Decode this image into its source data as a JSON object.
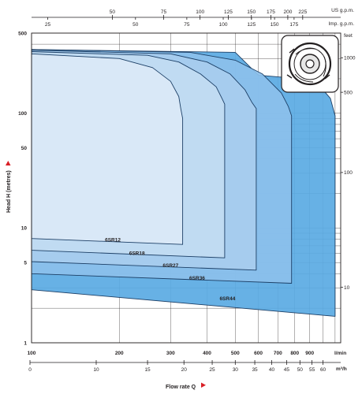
{
  "chart_data": {
    "type": "area",
    "title": "",
    "xlabel": "Flow rate Q",
    "ylabel": "Head H (metres)",
    "x_scale": "log",
    "y_scale": "log",
    "xlim": [
      100,
      1150
    ],
    "ylim": [
      1,
      500
    ],
    "grid": true,
    "x_unit": "l/min",
    "y_unit_right": "feet",
    "top_unit_us": "US g.p.m.",
    "top_unit_imp": "Imp. g.p.m.",
    "bottom_unit": "m³/h",
    "x_ticks": [
      "100",
      "200",
      "300",
      "400",
      "500",
      "600",
      "700",
      "800",
      "900"
    ],
    "y_ticks": [
      "1",
      "5",
      "10",
      "50",
      "100",
      "500"
    ],
    "us_gpm_ticks": [
      "50",
      "75",
      "100",
      "125",
      "150",
      "175",
      "200",
      "225"
    ],
    "imp_gpm_ticks": [
      "25",
      "50",
      "75",
      "100",
      "125",
      "150",
      "175"
    ],
    "m3h_ticks": [
      "0",
      "10",
      "15",
      "20",
      "25",
      "30",
      "35",
      "40",
      "45",
      "50",
      "55",
      "60"
    ],
    "feet_ticks": [
      "1000",
      "500",
      "100",
      "10"
    ],
    "colors": {
      "fill_lightest": "#dbe9f7",
      "fill_light": "#c2dcf2",
      "fill_mid": "#a8cdee",
      "fill_strong": "#8cc0eb",
      "fill_strongest": "#5aaae3",
      "outline": "#1c3f66",
      "arrow": "#d91f26"
    },
    "series": [
      {
        "name": "6SR12",
        "x": [
          100,
          200,
          260,
          300,
          320,
          325,
          330,
          330,
          100
        ],
        "y": [
          330,
          300,
          250,
          190,
          140,
          110,
          90,
          7.2,
          8.1
        ],
        "color": "#dbe9f7"
      },
      {
        "name": "6SR18",
        "x": [
          100,
          250,
          320,
          380,
          430,
          450,
          460,
          460,
          100
        ],
        "y": [
          345,
          320,
          280,
          220,
          170,
          135,
          120,
          5.5,
          6.4
        ],
        "color": "#c2dcf2"
      },
      {
        "name": "6SR27",
        "x": [
          100,
          300,
          400,
          480,
          540,
          570,
          590,
          590,
          100
        ],
        "y": [
          355,
          330,
          280,
          220,
          160,
          125,
          110,
          4.3,
          5.1
        ],
        "color": "#a8cdee"
      },
      {
        "name": "6SR36",
        "x": [
          100,
          350,
          500,
          620,
          720,
          760,
          780,
          780,
          100
        ],
        "y": [
          360,
          340,
          290,
          220,
          150,
          115,
          95,
          3.3,
          4.0
        ],
        "color": "#8cc0eb"
      },
      {
        "name": "6SR44",
        "x": [
          100,
          500,
          600,
          750,
          900,
          1000,
          1060,
          1100,
          1100,
          100
        ],
        "y": [
          360,
          340,
          215,
          205,
          185,
          160,
          135,
          95,
          1.7,
          2.9
        ],
        "color": "#5aaae3"
      }
    ]
  }
}
